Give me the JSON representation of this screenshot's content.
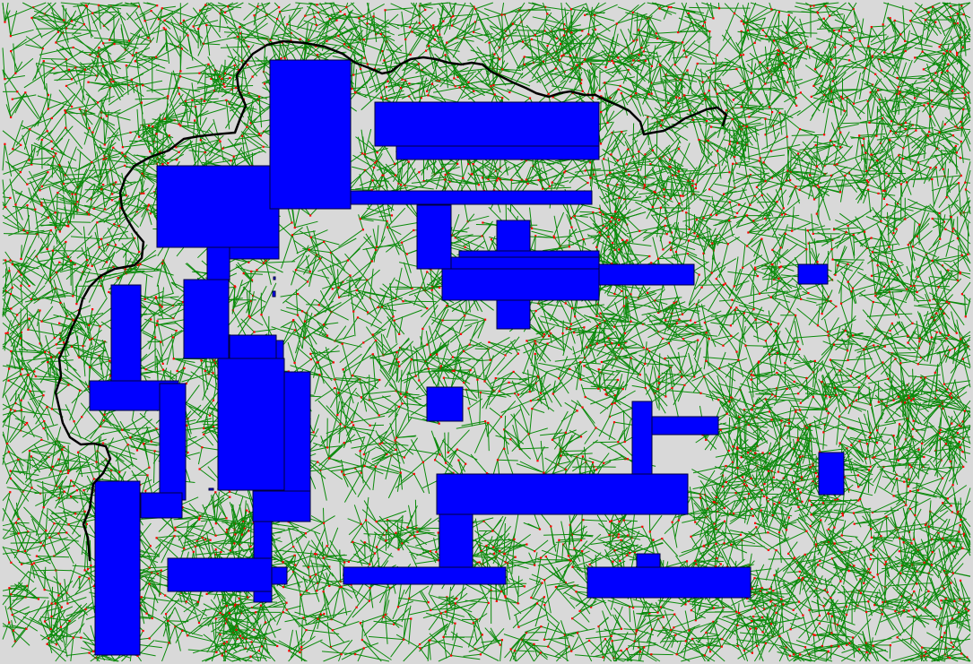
{
  "scene": {
    "background_color": "#d9d9d9",
    "obstacle_color": "#0000ff",
    "tree_edge_color": "#0a8a0a",
    "tree_node_color": "#ff0000",
    "path_color": "#000000"
  }
}
